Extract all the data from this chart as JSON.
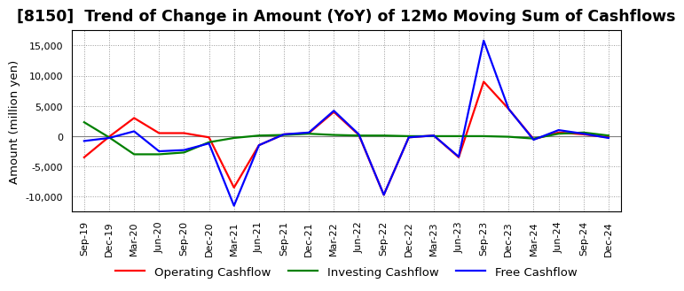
{
  "title": "[8150]  Trend of Change in Amount (YoY) of 12Mo Moving Sum of Cashflows",
  "ylabel": "Amount (million yen)",
  "x_labels": [
    "Sep-19",
    "Dec-19",
    "Mar-20",
    "Jun-20",
    "Sep-20",
    "Dec-20",
    "Mar-21",
    "Jun-21",
    "Sep-21",
    "Dec-21",
    "Mar-22",
    "Jun-22",
    "Sep-22",
    "Dec-22",
    "Mar-23",
    "Jun-23",
    "Sep-23",
    "Dec-23",
    "Mar-24",
    "Jun-24",
    "Sep-24",
    "Dec-24"
  ],
  "operating_cashflow": [
    -3500,
    -100,
    3000,
    500,
    500,
    -200,
    -8500,
    -1500,
    300,
    500,
    4000,
    200,
    -9700,
    -200,
    100,
    -3500,
    9000,
    4500,
    -500,
    600,
    300,
    -200
  ],
  "investing_cashflow": [
    2300,
    -200,
    -3000,
    -3000,
    -2700,
    -1000,
    -300,
    100,
    200,
    400,
    200,
    100,
    100,
    0,
    0,
    0,
    0,
    -100,
    -400,
    400,
    600,
    100
  ],
  "free_cashflow": [
    -800,
    -300,
    800,
    -2500,
    -2300,
    -1200,
    -11500,
    -1500,
    300,
    600,
    4200,
    300,
    -9700,
    -200,
    100,
    -3400,
    15800,
    4500,
    -600,
    1000,
    400,
    -300
  ],
  "operating_color": "#ff0000",
  "investing_color": "#008000",
  "free_color": "#0000ff",
  "ylim": [
    -12500,
    17500
  ],
  "yticks": [
    -10000,
    -5000,
    0,
    5000,
    10000,
    15000
  ],
  "background_color": "#ffffff",
  "grid_color": "#999999",
  "title_fontsize": 12.5,
  "axis_fontsize": 9.5,
  "tick_fontsize": 8,
  "legend_fontsize": 9.5,
  "linewidth": 1.6
}
